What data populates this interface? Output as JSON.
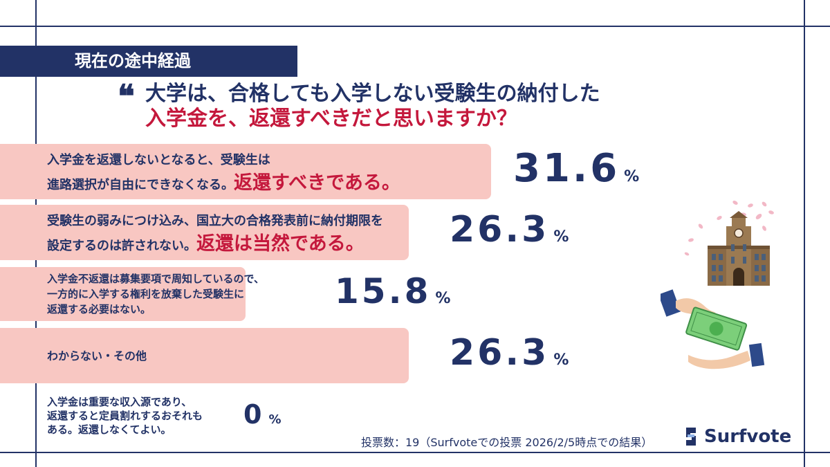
{
  "header": {
    "label": "現在の途中経過",
    "question_line1": "大学は、合格しても入学しない受験生の納付した",
    "question_line2": "入学金を、返還すべきだと思いますか？"
  },
  "chart_data": {
    "type": "bar",
    "orientation": "horizontal",
    "categories": [
      "入学金を返還しないとなると、受験生は進路選択が自由にできなくなる。返還すべきである。",
      "受験生の弱みにつけ込み、国立大の合格発表前に納付期限を設定するのは許されない。返還は当然である。",
      "入学金不返還は募集要項で周知しているので、一方的に入学する権利を放棄した受験生に返還する必要はない。",
      "わからない・その他",
      "入学金は重要な収入源であり、返還すると定員割れするおそれもある。返還しなくてよい。"
    ],
    "values": [
      31.6,
      26.3,
      15.8,
      26.3,
      0
    ],
    "value_unit": "%",
    "colors": {
      "bar": "#f8c7c2",
      "text": "#223266",
      "accent": "#c4183c"
    }
  },
  "options": [
    {
      "lines": [
        "入学金を返還しないとなると、受験生は",
        "進路選択が自由にできなくなる。"
      ],
      "emphasis": "返還すべきである。",
      "value_text": "31.6",
      "unit": "%"
    },
    {
      "lines": [
        "受験生の弱みにつけ込み、国立大の合格発表前に納付期限を",
        "設定するのは許されない。"
      ],
      "emphasis": "返還は当然である。",
      "value_text": "26.3",
      "unit": "%"
    },
    {
      "lines": [
        "入学金不返還は募集要項で周知しているので、",
        "一方的に入学する権利を放棄した受験生に",
        "返還する必要はない。"
      ],
      "emphasis": "",
      "value_text": "15.8",
      "unit": "%"
    },
    {
      "lines": [
        "わからない・その他"
      ],
      "emphasis": "",
      "value_text": "26.3",
      "unit": "%"
    },
    {
      "lines": [
        "入学金は重要な収入源であり、",
        "返還すると定員割れするおそれも",
        "ある。返還しなくてよい。"
      ],
      "emphasis": "",
      "value_text": "0",
      "unit": "%"
    }
  ],
  "footer": {
    "note": "投票数：19（Surfvoteでの投票 2026/2/5時点での結果）",
    "logo_text": "Surfvote"
  },
  "icons": {
    "university": "university-building-icon",
    "money": "money-handover-icon",
    "logo": "surfvote-logo-icon"
  }
}
